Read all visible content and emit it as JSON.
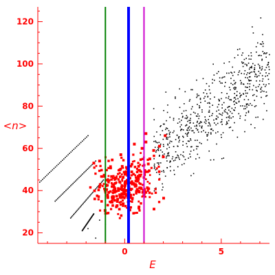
{
  "chart_data": {
    "type": "scatter",
    "title": "",
    "xlabel": "E",
    "ylabel": "<n>",
    "xlim": [
      -4.5,
      7.5
    ],
    "ylim": [
      15,
      127
    ],
    "x_ticks": [
      0,
      5
    ],
    "y_ticks": [
      20,
      40,
      60,
      80,
      100,
      120
    ],
    "grid": false,
    "legend": "none",
    "colors": {
      "axis": "#ff0000",
      "series_black": "#000000",
      "series_red": "#ff0000",
      "line_green": "#008000",
      "line_blue": "#0000ff",
      "line_magenta": "#cc00cc"
    },
    "vertical_lines": [
      {
        "x": -1.0,
        "color": "green"
      },
      {
        "x": 0.2,
        "color": "blue"
      },
      {
        "x": 1.0,
        "color": "magenta"
      }
    ],
    "series": [
      {
        "color": "black",
        "marker": "small-dot",
        "segments": [
          {
            "from": [
              -4.4,
              44
            ],
            "to": [
              -1.9,
              66
            ]
          },
          {
            "from": [
              -3.6,
              35
            ],
            "to": [
              -1.5,
              54
            ]
          },
          {
            "from": [
              -2.8,
              27
            ],
            "to": [
              -1.1,
              45
            ]
          },
          {
            "from": [
              -2.2,
              21
            ],
            "to": [
              -1.6,
              29
            ]
          }
        ],
        "cloud": {
          "x_range": [
            1.5,
            7.5
          ],
          "y_range": [
            36,
            127
          ],
          "trend": "increasing, y ≈ 58 + 7.5·(x − 2)"
        }
      },
      {
        "color": "red",
        "marker": "large-dot",
        "cloud": {
          "x_range": [
            -1.9,
            2.3
          ],
          "y_range": [
            26,
            68
          ],
          "center": [
            0,
            42
          ]
        }
      }
    ]
  },
  "axes": {
    "xlabel_text": "E",
    "ylabel_text": "<n>",
    "x_tick_labels": [
      "0",
      "5"
    ],
    "y_tick_labels": [
      "20",
      "40",
      "60",
      "80",
      "100",
      "120"
    ]
  }
}
